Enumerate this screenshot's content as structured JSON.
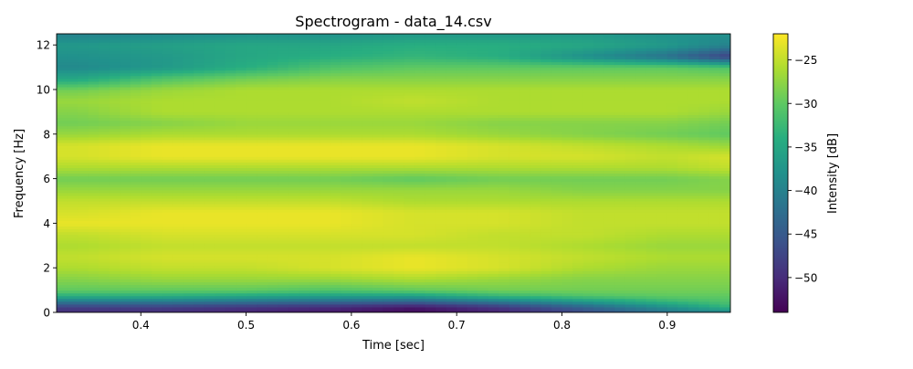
{
  "chart_data": {
    "type": "heatmap",
    "title": "Spectrogram - data_14.csv",
    "xlabel": "Time [sec]",
    "ylabel": "Frequency [Hz]",
    "xlim": [
      0.32,
      0.96
    ],
    "ylim": [
      0,
      12.5
    ],
    "x_ticks": [
      0.4,
      0.5,
      0.6,
      0.7,
      0.8,
      0.9
    ],
    "x_tick_labels": [
      "0.4",
      "0.5",
      "0.6",
      "0.7",
      "0.8",
      "0.9"
    ],
    "y_ticks": [
      0,
      2,
      4,
      6,
      8,
      10,
      12
    ],
    "y_tick_labels": [
      "0",
      "2",
      "4",
      "6",
      "8",
      "10",
      "12"
    ],
    "colormap": "viridis",
    "colorbar": {
      "label": "Intensity [dB]",
      "range": [
        -54,
        -22
      ],
      "ticks": [
        -25,
        -30,
        -35,
        -40,
        -45,
        -50
      ],
      "tick_labels": [
        "−25",
        "−30",
        "−35",
        "−40",
        "−45",
        "−50"
      ]
    },
    "grid": false,
    "time_bins": [
      0.34,
      0.42,
      0.5,
      0.58,
      0.66,
      0.74,
      0.82,
      0.9,
      0.96
    ],
    "freq_bins": [
      0,
      0.25,
      0.5,
      0.75,
      1,
      1.5,
      2,
      2.5,
      3,
      3.5,
      4,
      4.5,
      5,
      5.5,
      6,
      6.5,
      7,
      7.5,
      8,
      8.5,
      9,
      9.5,
      10,
      10.5,
      11,
      11.5,
      12,
      12.5
    ],
    "intensity_db": [
      [
        -50,
        -50,
        -51,
        -52,
        -53,
        -51,
        -47,
        -42,
        -40
      ],
      [
        -48,
        -48,
        -49,
        -50,
        -52,
        -49,
        -44,
        -38,
        -33
      ],
      [
        -41,
        -41,
        -42,
        -43,
        -44,
        -41,
        -37,
        -33,
        -31
      ],
      [
        -34,
        -34,
        -35,
        -36,
        -36,
        -33,
        -31,
        -30,
        -30
      ],
      [
        -30,
        -30,
        -30,
        -31,
        -30,
        -29,
        -29,
        -29,
        -29
      ],
      [
        -28,
        -27,
        -27,
        -27,
        -26,
        -27,
        -28,
        -28,
        -28
      ],
      [
        -26,
        -25,
        -25,
        -24,
        -23,
        -24,
        -26,
        -27,
        -27
      ],
      [
        -25,
        -24,
        -24,
        -24,
        -23,
        -24,
        -25,
        -26,
        -26
      ],
      [
        -26,
        -25,
        -25,
        -25,
        -25,
        -25,
        -26,
        -27,
        -27
      ],
      [
        -25,
        -24,
        -24,
        -24,
        -24,
        -25,
        -25,
        -26,
        -26
      ],
      [
        -23,
        -23,
        -23,
        -23,
        -24,
        -24,
        -25,
        -25,
        -25
      ],
      [
        -24,
        -23,
        -23,
        -23,
        -24,
        -24,
        -25,
        -25,
        -25
      ],
      [
        -25,
        -25,
        -25,
        -25,
        -26,
        -26,
        -26,
        -26,
        -26
      ],
      [
        -27,
        -27,
        -27,
        -27,
        -27,
        -27,
        -28,
        -28,
        -28
      ],
      [
        -29,
        -29,
        -29,
        -29,
        -30,
        -29,
        -29,
        -29,
        -28
      ],
      [
        -26,
        -26,
        -26,
        -26,
        -26,
        -26,
        -26,
        -26,
        -25
      ],
      [
        -24,
        -23,
        -23,
        -23,
        -23,
        -24,
        -24,
        -25,
        -24
      ],
      [
        -24,
        -23,
        -23,
        -23,
        -23,
        -24,
        -25,
        -26,
        -27
      ],
      [
        -27,
        -26,
        -26,
        -26,
        -26,
        -27,
        -28,
        -29,
        -30
      ],
      [
        -29,
        -28,
        -27,
        -27,
        -27,
        -28,
        -28,
        -28,
        -29
      ],
      [
        -28,
        -26,
        -26,
        -26,
        -26,
        -26,
        -26,
        -26,
        -27
      ],
      [
        -27,
        -26,
        -26,
        -26,
        -25,
        -26,
        -26,
        -26,
        -26
      ],
      [
        -29,
        -27,
        -26,
        -26,
        -26,
        -26,
        -26,
        -26,
        -26
      ],
      [
        -35,
        -31,
        -29,
        -28,
        -28,
        -28,
        -28,
        -28,
        -28
      ],
      [
        -39,
        -37,
        -34,
        -31,
        -30,
        -30,
        -30,
        -30,
        -31
      ],
      [
        -38,
        -37,
        -35,
        -34,
        -33,
        -34,
        -38,
        -42,
        -48
      ],
      [
        -37,
        -36,
        -35,
        -35,
        -34,
        -34,
        -35,
        -37,
        -40
      ],
      [
        -40,
        -39,
        -38,
        -38,
        -37,
        -37,
        -37,
        -38,
        -38
      ]
    ]
  }
}
